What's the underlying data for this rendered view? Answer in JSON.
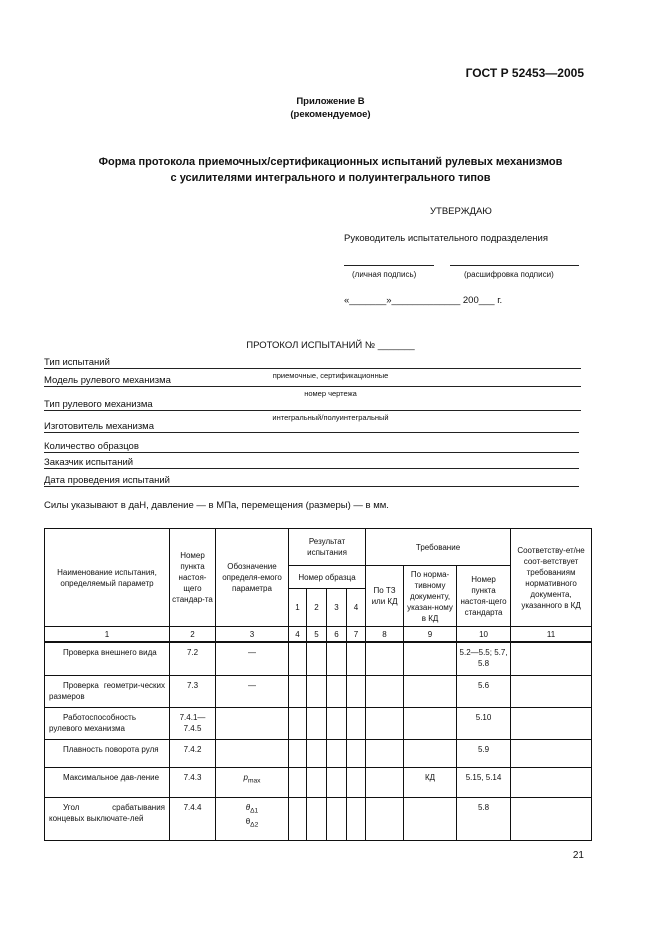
{
  "header": {
    "standard": "ГОСТ Р 52453—2005"
  },
  "appendix": {
    "title": "Приложение В",
    "note": "(рекомендуемое)"
  },
  "form_title": [
    "Форма протокола приемочных/сертификационных испытаний рулевых механизмов",
    "с усилителями интегрального и полуинтегрального типов"
  ],
  "approval": {
    "approve": "УТВЕРЖДАЮ",
    "head": "Руководитель испытательного подразделения",
    "sign": "(личная подпись)",
    "decode": "(расшифровка подписи)",
    "date": "«_______»_____________ 200___ г."
  },
  "protocol_title": "ПРОТОКОЛ ИСПЫТАНИЙ № _______",
  "fields": [
    {
      "label": "Тип испытаний",
      "hint": "приемочные, сертификационные"
    },
    {
      "label": "Модель рулевого механизма",
      "hint": "номер чертежа"
    },
    {
      "label": "Тип рулевого механизма",
      "hint": "интегральный/полуинтегральный"
    },
    {
      "label": "Изготовитель механизма",
      "hint": ""
    },
    {
      "label": "Количество образцов",
      "hint": ""
    },
    {
      "label": "Заказчик испытаний",
      "hint": ""
    },
    {
      "label": "Дата проведения испытаний",
      "hint": ""
    }
  ],
  "units_note": "Силы указывают в даН, давление — в МПа, перемещения (размеры) — в мм.",
  "table": {
    "h_name": "Наименование испытания, определяемый параметр",
    "h_clause": "Номер пункта настоя-щего стандар-та",
    "h_symbol": "Обозначение определя-емого параметра",
    "h_result": "Результат испытания",
    "h_sample": "Номер образца",
    "h_samples": [
      "1",
      "2",
      "3",
      "4"
    ],
    "h_req": "Требование",
    "h_tz": "По ТЗ или КД",
    "h_nd": "По норма-тивному документу, указан-ному в КД",
    "h_std": "Номер пункта настоя-щего стандарта",
    "h_conf": "Соответству-ет/не соот-ветствует требованиям нормативного документа, указанного в КД",
    "col_numbers": [
      "1",
      "2",
      "3",
      "4",
      "5",
      "6",
      "7",
      "8",
      "9",
      "10",
      "11"
    ],
    "rows": [
      {
        "name": "Проверка внешнего вида",
        "clause": "7.2",
        "symbol": "—",
        "nd": "",
        "std": "5.2—5.5; 5.7, 5.8"
      },
      {
        "name": "Проверка геометри-ческих размеров",
        "clause": "7.3",
        "symbol": "—",
        "nd": "",
        "std": "5.6"
      },
      {
        "name": "Работоспособность рулевого механизма",
        "clause": "7.4.1— 7.4.5",
        "symbol": "",
        "nd": "",
        "std": "5.10"
      },
      {
        "name": "Плавность поворота руля",
        "clause": "7.4.2",
        "symbol": "",
        "nd": "",
        "std": "5.9"
      },
      {
        "name": "Максимальное дав-ление",
        "clause": "7.4.3",
        "symbol": "p",
        "symbol_sub": "max",
        "nd": "КД",
        "std": "5.15, 5.14"
      },
      {
        "name": "Угол срабатывания концевых выключате-лей",
        "clause": "7.4.4",
        "symbol": "θ",
        "symbol_sub": "Δ1",
        "symbol2": "θ",
        "symbol2_sub": "Δ2",
        "nd": "",
        "std": "5.8"
      }
    ]
  },
  "page_number": "21"
}
